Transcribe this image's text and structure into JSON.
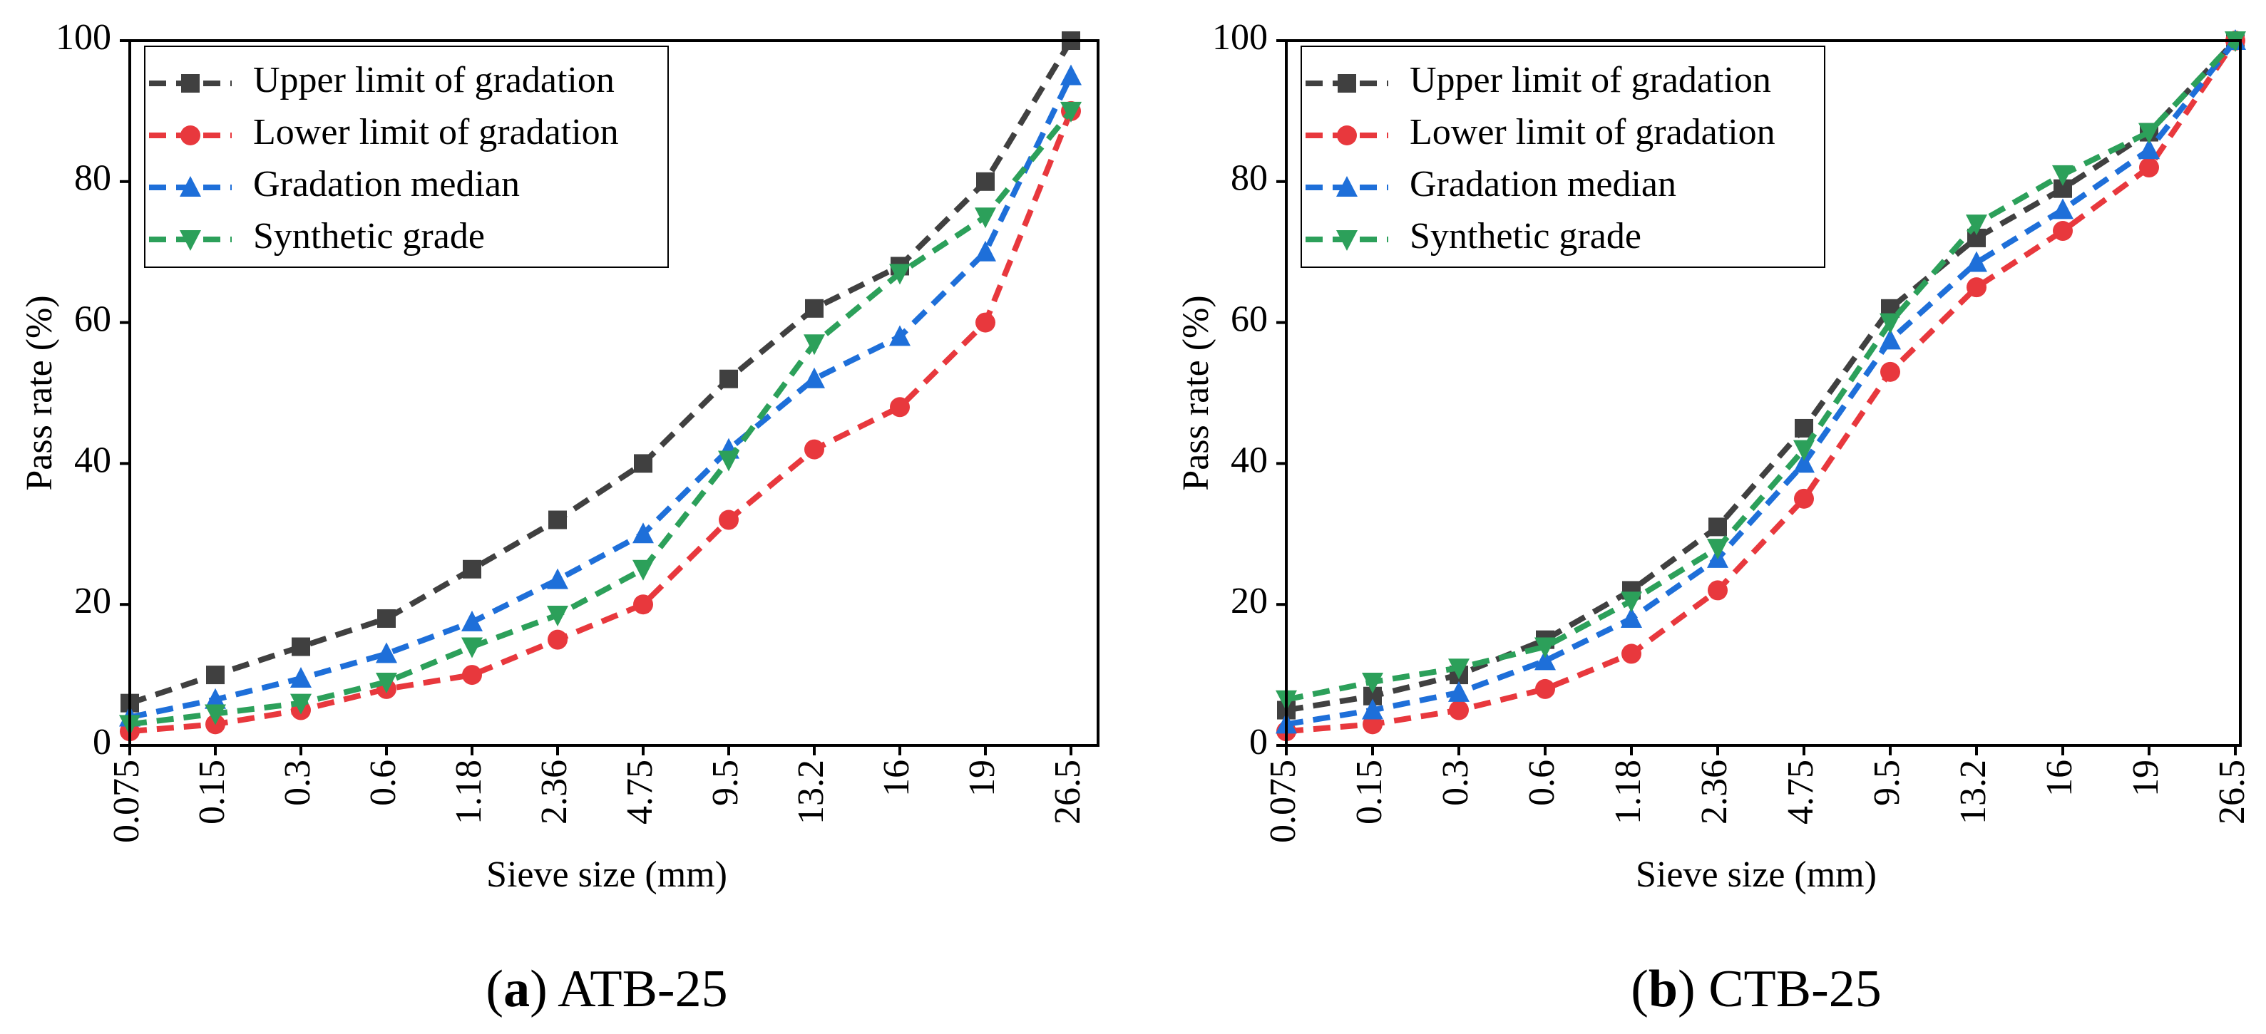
{
  "chart_data": [
    {
      "type": "line",
      "caption": {
        "open": "(",
        "label": "a",
        "rest": ") ATB-25"
      },
      "xlabel": "Sieve size (mm)",
      "ylabel": "Pass rate (%)",
      "categories": [
        "0.075",
        "0.15",
        "0.3",
        "0.6",
        "1.18",
        "2.36",
        "4.75",
        "9.5",
        "13.2",
        "16",
        "19",
        "26.5"
      ],
      "ylim": [
        0,
        100
      ],
      "yticks": [
        0,
        20,
        40,
        60,
        80,
        100
      ],
      "legend": "upper left",
      "series": [
        {
          "name": "Upper limit of gradation",
          "color": "#404040",
          "marker": "square",
          "values": [
            6,
            10,
            14,
            18,
            25,
            32,
            40,
            52,
            62,
            68,
            80,
            100
          ]
        },
        {
          "name": "Lower limit of gradation",
          "color": "#e8383d",
          "marker": "circle",
          "values": [
            2,
            3,
            5,
            8,
            10,
            15,
            20,
            32,
            42,
            48,
            60,
            90
          ]
        },
        {
          "name": "Gradation median",
          "color": "#1e6fd9",
          "marker": "triangle-up",
          "values": [
            4,
            6.5,
            9.5,
            13,
            17.5,
            23.5,
            30,
            42,
            52,
            58,
            70,
            95
          ]
        },
        {
          "name": "Synthetic grade",
          "color": "#2ca05a",
          "marker": "triangle-down",
          "values": [
            3,
            4.5,
            6,
            9,
            14,
            18.5,
            25,
            40.5,
            57,
            67,
            75,
            90
          ]
        }
      ]
    },
    {
      "type": "line",
      "caption": {
        "open": "(",
        "label": "b",
        "rest": ") CTB-25"
      },
      "xlabel": "Sieve size (mm)",
      "ylabel": "Pass rate (%)",
      "categories": [
        "0.075",
        "0.15",
        "0.3",
        "0.6",
        "1.18",
        "2.36",
        "4.75",
        "9.5",
        "13.2",
        "16",
        "19",
        "26.5"
      ],
      "ylim": [
        0,
        100
      ],
      "yticks": [
        0,
        20,
        40,
        60,
        80,
        100
      ],
      "legend": "upper left",
      "series": [
        {
          "name": "Upper limit of gradation",
          "color": "#404040",
          "marker": "square",
          "values": [
            5,
            7,
            10,
            15,
            22,
            31,
            45,
            62,
            72,
            79,
            87,
            100
          ]
        },
        {
          "name": "Lower limit of gradation",
          "color": "#e8383d",
          "marker": "circle",
          "values": [
            2,
            3,
            5,
            8,
            13,
            22,
            35,
            53,
            65,
            73,
            82,
            100
          ]
        },
        {
          "name": "Gradation median",
          "color": "#1e6fd9",
          "marker": "triangle-up",
          "values": [
            3,
            5,
            7.5,
            12,
            18,
            26.5,
            40,
            57.5,
            68.5,
            76,
            84.5,
            100
          ]
        },
        {
          "name": "Synthetic grade",
          "color": "#2ca05a",
          "marker": "triangle-down",
          "values": [
            6.5,
            9,
            11,
            14,
            20.5,
            28,
            42,
            60,
            74,
            81,
            87,
            100
          ]
        }
      ]
    }
  ]
}
